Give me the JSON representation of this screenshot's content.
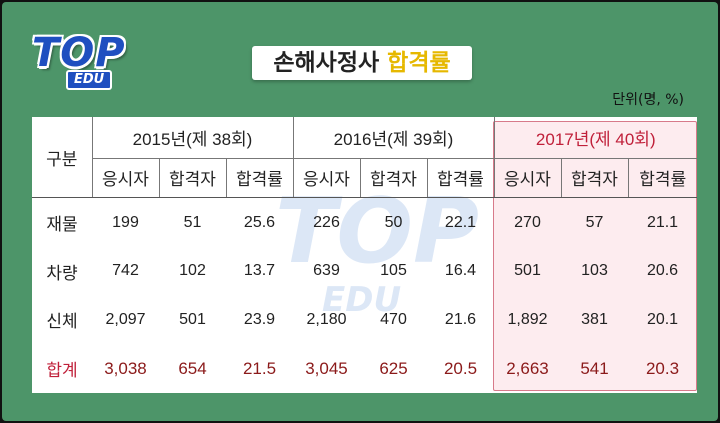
{
  "logo": {
    "main": "TOP",
    "sub": "EDU"
  },
  "title": {
    "main": "손해사정사",
    "highlight": "합격률"
  },
  "unit": "단위(명, %)",
  "watermark": {
    "main": "TOP",
    "sub": "EDU"
  },
  "table": {
    "corner_label": "구분",
    "years": [
      "2015년(제 38회)",
      "2016년(제 39회)",
      "2017년(제 40회)"
    ],
    "sub_headers": [
      "응시자",
      "합격자",
      "합격률"
    ],
    "rows": [
      {
        "label": "재물",
        "values": [
          "199",
          "51",
          "25.6",
          "226",
          "50",
          "22.1",
          "270",
          "57",
          "21.1"
        ]
      },
      {
        "label": "차량",
        "values": [
          "742",
          "102",
          "13.7",
          "639",
          "105",
          "16.4",
          "501",
          "103",
          "20.6"
        ]
      },
      {
        "label": "신체",
        "values": [
          "2,097",
          "501",
          "23.9",
          "2,180",
          "470",
          "21.6",
          "1,892",
          "381",
          "20.1"
        ]
      },
      {
        "label": "합계",
        "values": [
          "3,038",
          "654",
          "21.5",
          "3,045",
          "625",
          "20.5",
          "2,663",
          "541",
          "20.3"
        ]
      }
    ]
  },
  "colors": {
    "background": "#4d9569",
    "highlight_title": "#e6b800",
    "total_text": "#8b1a1a",
    "highlight_year": "#c0203a"
  }
}
